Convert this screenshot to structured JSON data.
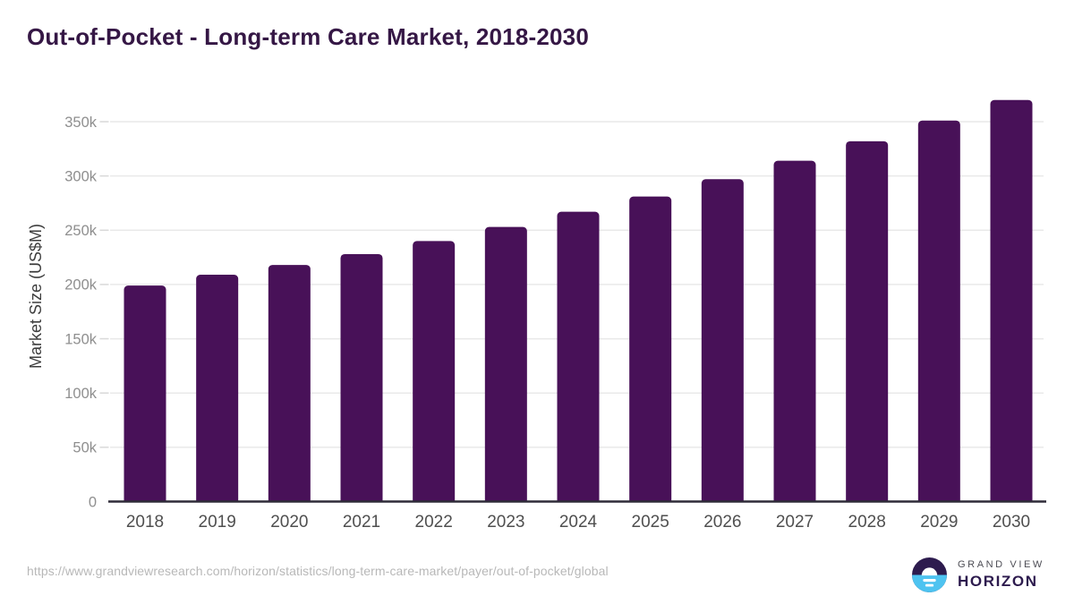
{
  "chart_data": {
    "type": "bar",
    "title": "Out-of-Pocket - Long-term Care Market, 2018-2030",
    "xlabel": "",
    "ylabel": "Market Size (US$M)",
    "unit": "US$M",
    "categories": [
      "2018",
      "2019",
      "2020",
      "2021",
      "2022",
      "2023",
      "2024",
      "2025",
      "2026",
      "2027",
      "2028",
      "2029",
      "2030"
    ],
    "values": [
      199000,
      209000,
      218000,
      228000,
      240000,
      253000,
      267000,
      281000,
      297000,
      314000,
      332000,
      351000,
      370000
    ],
    "yticks": [
      0,
      50000,
      100000,
      150000,
      200000,
      250000,
      300000,
      350000
    ],
    "ytick_labels": [
      "0",
      "50k",
      "100k",
      "150k",
      "200k",
      "250k",
      "300k",
      "350k"
    ],
    "ylim": [
      0,
      377000
    ],
    "grid": "horizontal",
    "legend": "none",
    "bar_color": "#481158"
  },
  "footer": {
    "source_url": "https://www.grandviewresearch.com/horizon/statistics/long-term-care-market/payer/out-of-pocket/global",
    "logo": {
      "brand_top": "GRAND VIEW",
      "brand_bottom": "HORIZON"
    }
  },
  "colors": {
    "title_text": "#351745",
    "bar": "#481158",
    "axis_line": "#2e2b38",
    "gridline": "#e9e9e9",
    "tick_mark": "#d9d9d9",
    "ytick_text": "#8f8f8f",
    "xtick_text": "#4f4f4f",
    "ylabel_text": "#3d3d3d",
    "url_text": "#b8b8b8",
    "logo_dark": "#2d1b4e",
    "logo_blue": "#4ec3f0",
    "logo_brand_top_text": "#4d4d55"
  }
}
